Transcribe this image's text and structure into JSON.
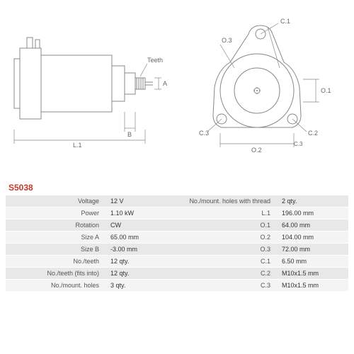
{
  "part_number": "S5038",
  "diagram": {
    "side_view": {
      "labels": {
        "teeth": "Teeth",
        "A": "A",
        "B": "B",
        "L1": "L.1"
      },
      "stroke": "#888888",
      "fill": "#ffffff"
    },
    "front_view": {
      "labels": {
        "O1": "O.1",
        "O2": "O.2",
        "O3": "O.3",
        "C1_lbl": "C.1",
        "C2_lbl": "C.2",
        "C3_left": "C.3",
        "C3_right": "C.3"
      },
      "stroke": "#888888",
      "fill": "#ffffff"
    }
  },
  "specs": [
    {
      "l": "Voltage",
      "v": "12 V",
      "l2": "No./mount. holes with thread",
      "v2": "2 qty."
    },
    {
      "l": "Power",
      "v": "1.10 kW",
      "l2": "L.1",
      "v2": "196.00 mm"
    },
    {
      "l": "Rotation",
      "v": "CW",
      "l2": "O.1",
      "v2": "64.00 mm"
    },
    {
      "l": "Size A",
      "v": "65.00 mm",
      "l2": "O.2",
      "v2": "104.00 mm"
    },
    {
      "l": "Size B",
      "v": "-3.00 mm",
      "l2": "O.3",
      "v2": "72.00 mm"
    },
    {
      "l": "No./teeth",
      "v": "12 qty.",
      "l2": "C.1",
      "v2": "6.50 mm"
    },
    {
      "l": "No./teeth (fits into)",
      "v": "12 qty.",
      "l2": "C.2",
      "v2": "M10x1.5 mm"
    },
    {
      "l": "No./mount. holes",
      "v": "3 qty.",
      "l2": "C.3",
      "v2": "M10x1.5 mm"
    }
  ],
  "colors": {
    "row_odd": "#e8e8e8",
    "row_even": "#f4f4f4",
    "partno": "#c0392b",
    "text": "#555555",
    "stroke": "#888888"
  }
}
